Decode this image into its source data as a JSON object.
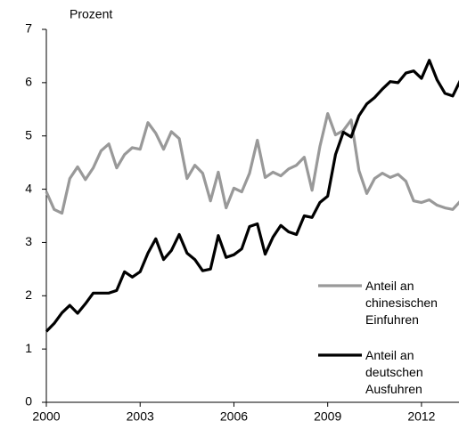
{
  "chart_data": {
    "type": "line",
    "y_label": "Prozent",
    "x": [
      2000,
      2000.25,
      2000.5,
      2000.75,
      2001,
      2001.25,
      2001.5,
      2001.75,
      2002,
      2002.25,
      2002.5,
      2002.75,
      2003,
      2003.25,
      2003.5,
      2003.75,
      2004,
      2004.25,
      2004.5,
      2004.75,
      2005,
      2005.25,
      2005.5,
      2005.75,
      2006,
      2006.25,
      2006.5,
      2006.75,
      2007,
      2007.25,
      2007.5,
      2007.75,
      2008,
      2008.25,
      2008.5,
      2008.75,
      2009,
      2009.25,
      2009.5,
      2009.75,
      2010,
      2010.25,
      2010.5,
      2010.75,
      2011,
      2011.25,
      2011.5,
      2011.75,
      2012,
      2012.25,
      2012.5,
      2012.75,
      2013,
      2013.25
    ],
    "series": [
      {
        "name": "Anteil an chinesischen Einfuhren",
        "color": "#999999",
        "values": [
          3.95,
          3.62,
          3.55,
          4.2,
          4.42,
          4.18,
          4.4,
          4.72,
          4.85,
          4.4,
          4.65,
          4.78,
          4.75,
          5.25,
          5.05,
          4.75,
          5.08,
          4.95,
          4.2,
          4.45,
          4.3,
          3.78,
          4.32,
          3.65,
          4.02,
          3.95,
          4.3,
          4.92,
          4.22,
          4.32,
          4.25,
          4.38,
          4.45,
          4.6,
          3.98,
          4.8,
          5.42,
          5.02,
          5.1,
          5.3,
          4.35,
          3.92,
          4.2,
          4.3,
          4.22,
          4.28,
          4.15,
          3.78,
          3.75,
          3.8,
          3.7,
          3.65,
          3.62,
          3.78
        ]
      },
      {
        "name": "Anteil an deutschen Ausfuhren",
        "color": "#000000",
        "values": [
          1.33,
          1.48,
          1.68,
          1.82,
          1.67,
          1.85,
          2.05,
          2.05,
          2.05,
          2.1,
          2.45,
          2.35,
          2.45,
          2.8,
          3.07,
          2.68,
          2.85,
          3.15,
          2.8,
          2.68,
          2.47,
          2.5,
          3.13,
          2.72,
          2.77,
          2.88,
          3.3,
          3.35,
          2.78,
          3.1,
          3.32,
          3.2,
          3.15,
          3.5,
          3.47,
          3.75,
          3.87,
          4.65,
          5.07,
          4.98,
          5.38,
          5.6,
          5.72,
          5.88,
          6.02,
          6.0,
          6.18,
          6.22,
          6.08,
          6.42,
          6.05,
          5.8,
          5.75,
          6.05
        ]
      }
    ],
    "xlim": [
      2000,
      2013.2
    ],
    "xticks": [
      2000,
      2003,
      2006,
      2009,
      2012
    ],
    "ylim": [
      0,
      7
    ],
    "yticks": [
      0,
      1,
      2,
      3,
      4,
      5,
      6,
      7
    ],
    "grid": false,
    "legend": "right"
  }
}
